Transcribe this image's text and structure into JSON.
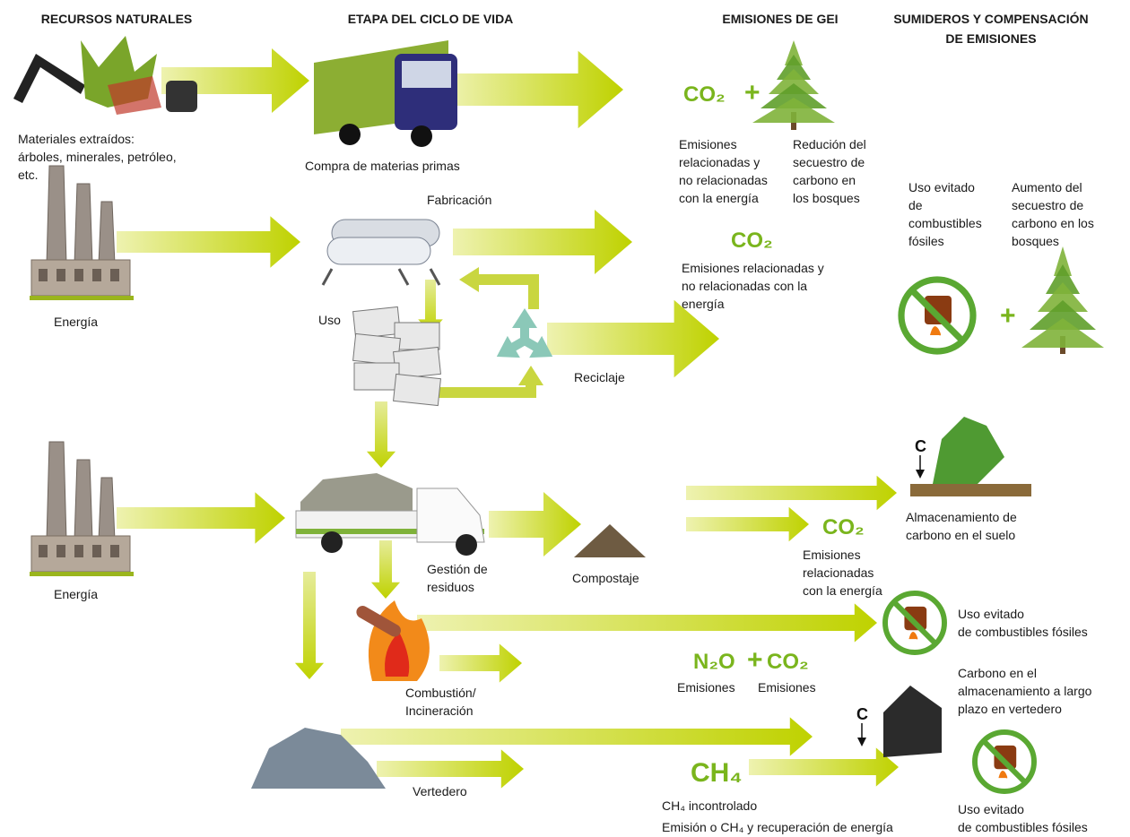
{
  "headers": {
    "natural_resources": [
      "RECURSOS NATURALES"
    ],
    "life_cycle_stage": [
      "ETAPA DEL CICLO DE VIDA"
    ],
    "ghg_emissions": [
      "EMISIONES DE GEI"
    ],
    "sinks_offsets": [
      "SUMIDEROS Y COMPENSACIÓN",
      "DE EMISIONES"
    ]
  },
  "labels": {
    "materials": [
      "Materiales extraídos:",
      "árboles, minerales, petróleo,",
      "etc."
    ],
    "purchase": [
      "Compra de materias primas"
    ],
    "emissions_1": [
      "Emisiones",
      "relacionadas y",
      "no relacionadas",
      "con la energía"
    ],
    "forest_reduction": [
      "Redución del",
      "secuestro de",
      "carbono en",
      "los bosques"
    ],
    "manufacturing": [
      "Fabricación"
    ],
    "avoided_fuel_1": [
      "Uso evitado",
      "de",
      "combustibles",
      "fósiles"
    ],
    "forest_increase": [
      "Aumento del",
      "secuestro de",
      "carbono en los",
      "bosques"
    ],
    "emissions_2": [
      "Emisiones relacionadas y",
      "no relacionadas con la",
      "energía"
    ],
    "energy_1": [
      "Energía"
    ],
    "use": [
      "Uso"
    ],
    "recycling": [
      "Reciclaje"
    ],
    "soil_storage": [
      "Almacenamiento de",
      "carbono en el suelo"
    ],
    "waste_management": [
      "Gestión de",
      "residuos"
    ],
    "composting": [
      "Compostaje"
    ],
    "emissions_3": [
      "Emisiones",
      "relacionadas",
      "con la energía"
    ],
    "energy_2": [
      "Energía"
    ],
    "avoided_fuel_2": [
      "Uso evitado",
      "de combustibles fósiles"
    ],
    "n2o_emissions": [
      "Emisiones"
    ],
    "co2_emissions": [
      "Emisiones"
    ],
    "landfill_storage": [
      "Carbono en el",
      "almacenamiento a largo",
      "plazo en vertedero"
    ],
    "combustion": [
      "Combustión/",
      "Incineración"
    ],
    "landfill": [
      "Vertedero"
    ],
    "ch4_notes": [
      "CH₄ incontrolado",
      "Emisión o CH₄ y recuperación de energía"
    ],
    "avoided_fuel_3": [
      "Uso evitado",
      "de combustibles fósiles"
    ]
  },
  "formulas": {
    "co2_a": "CO₂",
    "co2_b": "CO₂",
    "co2_c": "CO₂",
    "n2o": "N₂O",
    "co2_d": "CO₂",
    "ch4": "CH₄"
  },
  "plus": "+",
  "carbon_symbol": "C"
}
